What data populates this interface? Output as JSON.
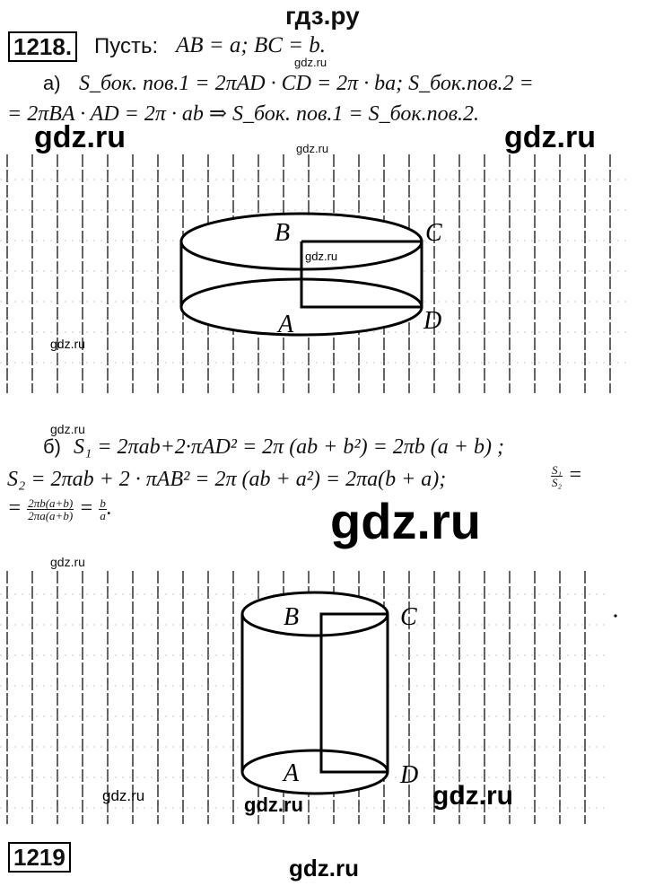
{
  "header_site": "гдз.ру",
  "problem": {
    "number": "1218.",
    "intro_word": "Пусть:",
    "intro_eq": "AB = a;  BC = b."
  },
  "part_a": {
    "label": "а)",
    "line1": "S_бок. пов.1 = 2πAD · CD = 2π · ba;  S_бок.пов.2 =",
    "line2": "= 2πBA · AD = 2π · ab ⇒ S_бок. пов.1 = S_бок.пов.2."
  },
  "part_b": {
    "label": "б)",
    "line1": "S₁ = 2πab+2·πAD² = 2π (ab + b²) = 2πb (a + b) ;",
    "line2": "S₂ = 2πab + 2 · πAB² = 2π (ab + a²) = 2πa(b + a);",
    "ratio_num": "S₁",
    "ratio_den": "S₂",
    "line3_eq": "=",
    "line3_frac_num": "2πb(a+b)",
    "line3_frac_den": "2πa(a+b)",
    "line3_res_num": "b",
    "line3_res_den": "a"
  },
  "figure1_labels": {
    "B": "B",
    "C": "C",
    "A": "A",
    "D": "D"
  },
  "figure2_labels": {
    "B": "B",
    "C": "C",
    "A": "A",
    "D": "D"
  },
  "watermarks": {
    "big": "gdz.ru",
    "small": "gdz.ru"
  },
  "footer_site": "gdz.ru",
  "next_problem_fragment": "1219"
}
